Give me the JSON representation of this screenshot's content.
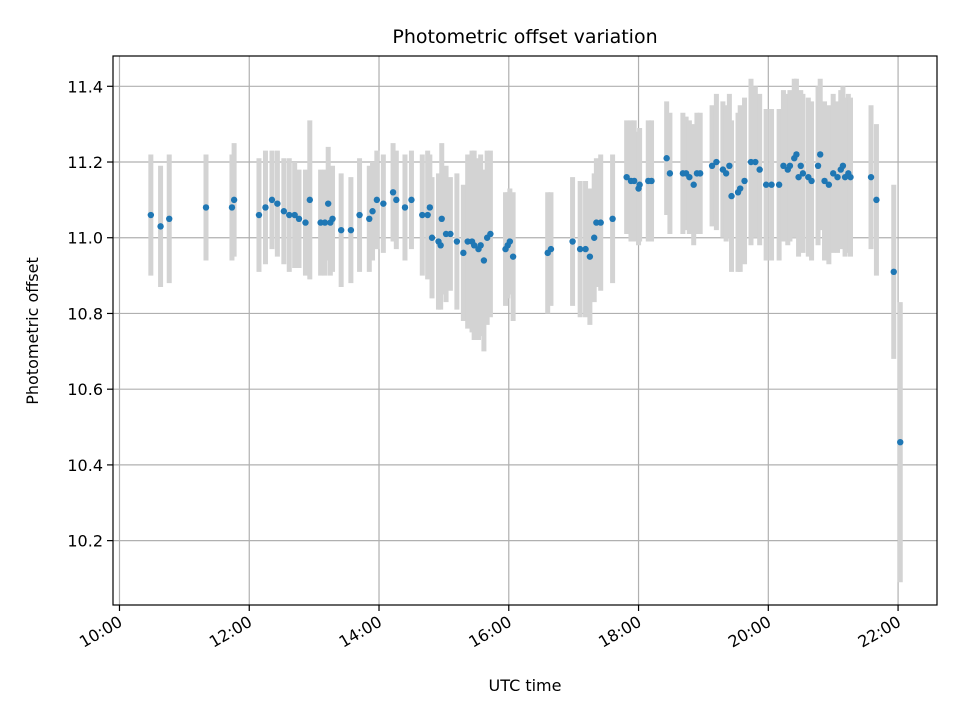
{
  "chart_data": {
    "type": "scatter",
    "title": "Photometric offset variation",
    "xlabel": "UTC time",
    "ylabel": "Photometric offset",
    "x_unit": "UTC time (HH:MM)",
    "xlim": [
      "09:54",
      "22:36"
    ],
    "ylim": [
      10.03,
      11.48
    ],
    "x_ticks": [
      "10:00",
      "12:00",
      "14:00",
      "16:00",
      "18:00",
      "20:00",
      "22:00"
    ],
    "y_ticks": [
      "10.2",
      "10.4",
      "10.6",
      "10.8",
      "11.0",
      "11.2",
      "11.4"
    ],
    "grid": true,
    "marker_color": "#1f77b4",
    "errorbar_color": "#d3d3d3",
    "points": [
      {
        "t": "10:29",
        "y": 11.06,
        "err": 0.16
      },
      {
        "t": "10:38",
        "y": 11.03,
        "err": 0.16
      },
      {
        "t": "10:46",
        "y": 11.05,
        "err": 0.17
      },
      {
        "t": "11:20",
        "y": 11.08,
        "err": 0.14
      },
      {
        "t": "11:44",
        "y": 11.08,
        "err": 0.14
      },
      {
        "t": "11:46",
        "y": 11.1,
        "err": 0.15
      },
      {
        "t": "12:09",
        "y": 11.06,
        "err": 0.15
      },
      {
        "t": "12:15",
        "y": 11.08,
        "err": 0.15
      },
      {
        "t": "12:21",
        "y": 11.1,
        "err": 0.13
      },
      {
        "t": "12:26",
        "y": 11.09,
        "err": 0.14
      },
      {
        "t": "12:32",
        "y": 11.07,
        "err": 0.14
      },
      {
        "t": "12:37",
        "y": 11.06,
        "err": 0.15
      },
      {
        "t": "12:42",
        "y": 11.06,
        "err": 0.14
      },
      {
        "t": "12:46",
        "y": 11.05,
        "err": 0.13
      },
      {
        "t": "12:52",
        "y": 11.04,
        "err": 0.14
      },
      {
        "t": "12:56",
        "y": 11.1,
        "err": 0.21
      },
      {
        "t": "13:06",
        "y": 11.04,
        "err": 0.14
      },
      {
        "t": "13:10",
        "y": 11.04,
        "err": 0.14
      },
      {
        "t": "13:13",
        "y": 11.09,
        "err": 0.15
      },
      {
        "t": "13:15",
        "y": 11.04,
        "err": 0.14
      },
      {
        "t": "13:17",
        "y": 11.05,
        "err": 0.14
      },
      {
        "t": "13:25",
        "y": 11.02,
        "err": 0.15
      },
      {
        "t": "13:34",
        "y": 11.02,
        "err": 0.14
      },
      {
        "t": "13:42",
        "y": 11.06,
        "err": 0.15
      },
      {
        "t": "13:51",
        "y": 11.05,
        "err": 0.14
      },
      {
        "t": "13:54",
        "y": 11.07,
        "err": 0.13
      },
      {
        "t": "13:58",
        "y": 11.1,
        "err": 0.13
      },
      {
        "t": "14:04",
        "y": 11.09,
        "err": 0.13
      },
      {
        "t": "14:13",
        "y": 11.12,
        "err": 0.13
      },
      {
        "t": "14:16",
        "y": 11.1,
        "err": 0.13
      },
      {
        "t": "14:24",
        "y": 11.08,
        "err": 0.14
      },
      {
        "t": "14:30",
        "y": 11.1,
        "err": 0.13
      },
      {
        "t": "14:40",
        "y": 11.06,
        "err": 0.16
      },
      {
        "t": "14:45",
        "y": 11.06,
        "err": 0.17
      },
      {
        "t": "14:47",
        "y": 11.08,
        "err": 0.14
      },
      {
        "t": "14:49",
        "y": 11.0,
        "err": 0.16
      },
      {
        "t": "14:55",
        "y": 10.99,
        "err": 0.18
      },
      {
        "t": "14:57",
        "y": 10.98,
        "err": 0.17
      },
      {
        "t": "14:58",
        "y": 11.05,
        "err": 0.2
      },
      {
        "t": "15:02",
        "y": 11.01,
        "err": 0.18
      },
      {
        "t": "15:06",
        "y": 11.01,
        "err": 0.15
      },
      {
        "t": "15:12",
        "y": 10.99,
        "err": 0.18
      },
      {
        "t": "15:18",
        "y": 10.96,
        "err": 0.18
      },
      {
        "t": "15:22",
        "y": 10.99,
        "err": 0.23
      },
      {
        "t": "15:26",
        "y": 10.99,
        "err": 0.24
      },
      {
        "t": "15:28",
        "y": 10.98,
        "err": 0.25
      },
      {
        "t": "15:32",
        "y": 10.97,
        "err": 0.24
      },
      {
        "t": "15:34",
        "y": 10.98,
        "err": 0.24
      },
      {
        "t": "15:37",
        "y": 10.94,
        "err": 0.24
      },
      {
        "t": "15:40",
        "y": 11.0,
        "err": 0.23
      },
      {
        "t": "15:43",
        "y": 11.01,
        "err": 0.22
      },
      {
        "t": "15:57",
        "y": 10.97,
        "err": 0.15
      },
      {
        "t": "15:59",
        "y": 10.98,
        "err": 0.14
      },
      {
        "t": "16:01",
        "y": 10.99,
        "err": 0.14
      },
      {
        "t": "16:04",
        "y": 10.95,
        "err": 0.17
      },
      {
        "t": "16:36",
        "y": 10.96,
        "err": 0.16
      },
      {
        "t": "16:39",
        "y": 10.97,
        "err": 0.15
      },
      {
        "t": "16:59",
        "y": 10.99,
        "err": 0.17
      },
      {
        "t": "17:06",
        "y": 10.97,
        "err": 0.18
      },
      {
        "t": "17:11",
        "y": 10.97,
        "err": 0.18
      },
      {
        "t": "17:15",
        "y": 10.95,
        "err": 0.18
      },
      {
        "t": "17:19",
        "y": 11.0,
        "err": 0.17
      },
      {
        "t": "17:21",
        "y": 11.04,
        "err": 0.17
      },
      {
        "t": "17:25",
        "y": 11.04,
        "err": 0.18
      },
      {
        "t": "17:36",
        "y": 11.05,
        "err": 0.17
      },
      {
        "t": "17:49",
        "y": 11.16,
        "err": 0.15
      },
      {
        "t": "17:53",
        "y": 11.15,
        "err": 0.16
      },
      {
        "t": "17:56",
        "y": 11.15,
        "err": 0.16
      },
      {
        "t": "18:00",
        "y": 11.13,
        "err": 0.15
      },
      {
        "t": "18:01",
        "y": 11.14,
        "err": 0.15
      },
      {
        "t": "18:09",
        "y": 11.15,
        "err": 0.16
      },
      {
        "t": "18:12",
        "y": 11.15,
        "err": 0.16
      },
      {
        "t": "18:26",
        "y": 11.21,
        "err": 0.15
      },
      {
        "t": "18:29",
        "y": 11.17,
        "err": 0.16
      },
      {
        "t": "18:41",
        "y": 11.17,
        "err": 0.16
      },
      {
        "t": "18:44",
        "y": 11.17,
        "err": 0.15
      },
      {
        "t": "18:47",
        "y": 11.16,
        "err": 0.15
      },
      {
        "t": "18:51",
        "y": 11.14,
        "err": 0.16
      },
      {
        "t": "18:54",
        "y": 11.17,
        "err": 0.16
      },
      {
        "t": "18:57",
        "y": 11.17,
        "err": 0.16
      },
      {
        "t": "19:08",
        "y": 11.19,
        "err": 0.16
      },
      {
        "t": "19:12",
        "y": 11.2,
        "err": 0.18
      },
      {
        "t": "19:18",
        "y": 11.18,
        "err": 0.18
      },
      {
        "t": "19:21",
        "y": 11.17,
        "err": 0.18
      },
      {
        "t": "19:24",
        "y": 11.19,
        "err": 0.19
      },
      {
        "t": "19:26",
        "y": 11.11,
        "err": 0.2
      },
      {
        "t": "19:32",
        "y": 11.12,
        "err": 0.21
      },
      {
        "t": "19:34",
        "y": 11.13,
        "err": 0.22
      },
      {
        "t": "19:38",
        "y": 11.15,
        "err": 0.22
      },
      {
        "t": "19:44",
        "y": 11.2,
        "err": 0.22
      },
      {
        "t": "19:48",
        "y": 11.2,
        "err": 0.2
      },
      {
        "t": "19:52",
        "y": 11.18,
        "err": 0.2
      },
      {
        "t": "19:58",
        "y": 11.14,
        "err": 0.2
      },
      {
        "t": "20:03",
        "y": 11.14,
        "err": 0.2
      },
      {
        "t": "20:10",
        "y": 11.14,
        "err": 0.2
      },
      {
        "t": "20:14",
        "y": 11.19,
        "err": 0.2
      },
      {
        "t": "20:18",
        "y": 11.18,
        "err": 0.2
      },
      {
        "t": "20:20",
        "y": 11.19,
        "err": 0.2
      },
      {
        "t": "20:24",
        "y": 11.21,
        "err": 0.21
      },
      {
        "t": "20:26",
        "y": 11.22,
        "err": 0.2
      },
      {
        "t": "20:28",
        "y": 11.16,
        "err": 0.21
      },
      {
        "t": "20:30",
        "y": 11.19,
        "err": 0.2
      },
      {
        "t": "20:32",
        "y": 11.17,
        "err": 0.21
      },
      {
        "t": "20:37",
        "y": 11.16,
        "err": 0.21
      },
      {
        "t": "20:40",
        "y": 11.15,
        "err": 0.21
      },
      {
        "t": "20:46",
        "y": 11.19,
        "err": 0.21
      },
      {
        "t": "20:48",
        "y": 11.22,
        "err": 0.2
      },
      {
        "t": "20:52",
        "y": 11.15,
        "err": 0.21
      },
      {
        "t": "20:56",
        "y": 11.14,
        "err": 0.21
      },
      {
        "t": "21:00",
        "y": 11.17,
        "err": 0.21
      },
      {
        "t": "21:04",
        "y": 11.16,
        "err": 0.2
      },
      {
        "t": "21:07",
        "y": 11.18,
        "err": 0.21
      },
      {
        "t": "21:09",
        "y": 11.19,
        "err": 0.21
      },
      {
        "t": "21:11",
        "y": 11.16,
        "err": 0.21
      },
      {
        "t": "21:14",
        "y": 11.17,
        "err": 0.21
      },
      {
        "t": "21:16",
        "y": 11.16,
        "err": 0.21
      },
      {
        "t": "21:35",
        "y": 11.16,
        "err": 0.19
      },
      {
        "t": "21:40",
        "y": 11.1,
        "err": 0.2
      },
      {
        "t": "21:56",
        "y": 10.91,
        "err": 0.23
      },
      {
        "t": "22:02",
        "y": 10.46,
        "err": 0.37
      }
    ]
  }
}
